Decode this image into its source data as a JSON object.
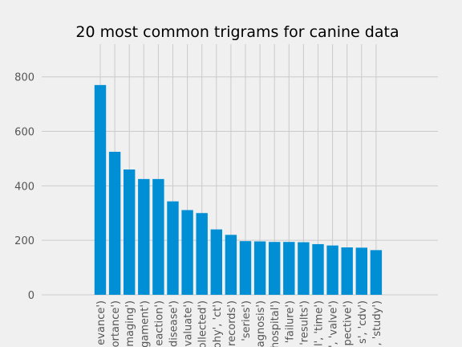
{
  "chart_data": {
    "type": "bar",
    "title": "20 most common trigrams for canine data",
    "xlabel": "",
    "ylabel": "",
    "ylim": [
      0,
      920
    ],
    "yticks": [
      0,
      200,
      400,
      600,
      800
    ],
    "grid": true,
    "bar_color": "#008fd5",
    "background": "#f0f0f0",
    "categories": [
      "evance')",
      "ortance')",
      "maging')",
      "gament')",
      "eaction')",
      "disease')",
      "valuate')",
      "ollected')",
      "ohy', 'ct')",
      "records')",
      "'series')",
      "agnosis')",
      "hospital')",
      "'failure')",
      "'results')",
      "l', 'time')",
      "', 'valve')",
      "pective')",
      "s', 'cdv')",
      ", 'study')"
    ],
    "values": [
      770,
      525,
      460,
      425,
      425,
      343,
      311,
      300,
      240,
      220,
      197,
      196,
      194,
      194,
      193,
      186,
      181,
      174,
      173,
      164
    ]
  }
}
